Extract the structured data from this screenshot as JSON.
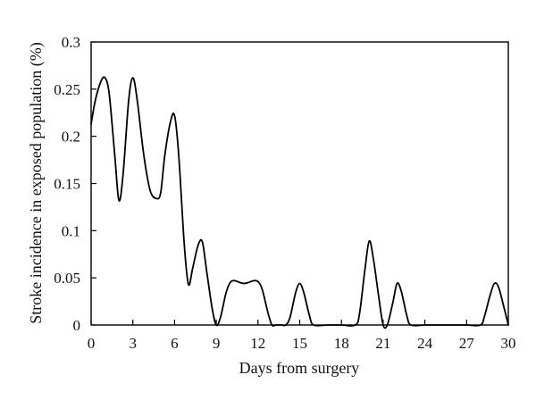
{
  "chart_data": {
    "type": "line",
    "title": "",
    "xlabel": "Days from surgery",
    "ylabel": "Stroke incidence in exposed population (%)",
    "xlim": [
      0,
      30
    ],
    "ylim": [
      0,
      0.3
    ],
    "xticks": [
      0,
      3,
      6,
      9,
      12,
      15,
      18,
      21,
      24,
      27,
      30
    ],
    "xtick_labels": [
      "0",
      "3",
      "6",
      "9",
      "12",
      "15",
      "18",
      "21",
      "24",
      "27",
      "30"
    ],
    "yticks": [
      0,
      0.05,
      0.1,
      0.15,
      0.2,
      0.25,
      0.3
    ],
    "ytick_labels": [
      "0",
      "0.05",
      "0.1",
      "0.15",
      "0.2",
      "0.25",
      "0.3"
    ],
    "grid": false,
    "legend": "none",
    "line_color": "#000000",
    "series": [
      {
        "x": [
          0,
          0.3,
          0.7,
          1.0,
          1.3,
          1.7,
          2.0,
          2.3,
          2.7,
          3.0,
          3.3,
          3.7,
          4.0,
          4.3,
          4.7,
          5.0,
          5.3,
          5.7,
          6.0,
          6.3,
          6.7,
          7.0,
          7.3,
          7.7,
          8.0,
          8.3,
          8.7,
          9.0,
          9.3,
          9.7,
          10.0,
          10.3,
          10.7,
          11.0,
          11.3,
          11.7,
          12.0,
          12.3,
          12.7,
          13.0,
          13.3,
          13.7,
          14.0,
          14.3,
          14.7,
          15.0,
          15.3,
          15.7,
          16.0,
          17.0,
          18.0,
          19.0,
          19.3,
          19.7,
          20.0,
          20.3,
          20.7,
          21.0,
          21.3,
          21.7,
          22.0,
          22.3,
          22.7,
          23.0,
          24.0,
          25.0,
          26.0,
          27.0,
          28.0,
          28.3,
          28.7,
          29.0,
          29.3,
          29.7,
          30.0
        ],
        "y": [
          0.213,
          0.238,
          0.258,
          0.262,
          0.245,
          0.18,
          0.132,
          0.16,
          0.238,
          0.262,
          0.24,
          0.19,
          0.16,
          0.14,
          0.134,
          0.14,
          0.18,
          0.215,
          0.222,
          0.18,
          0.085,
          0.043,
          0.06,
          0.085,
          0.088,
          0.058,
          0.018,
          0.0,
          0.008,
          0.034,
          0.045,
          0.047,
          0.045,
          0.044,
          0.045,
          0.047,
          0.046,
          0.038,
          0.014,
          0.0,
          0.0,
          0.0,
          0.0,
          0.008,
          0.034,
          0.044,
          0.034,
          0.01,
          0.0,
          0.0,
          0.0,
          0.0,
          0.012,
          0.06,
          0.089,
          0.07,
          0.028,
          0.0,
          0.0,
          0.024,
          0.044,
          0.036,
          0.01,
          0.0,
          0.0,
          0.0,
          0.0,
          0.0,
          0.0,
          0.01,
          0.032,
          0.044,
          0.04,
          0.018,
          0.0
        ]
      }
    ]
  }
}
